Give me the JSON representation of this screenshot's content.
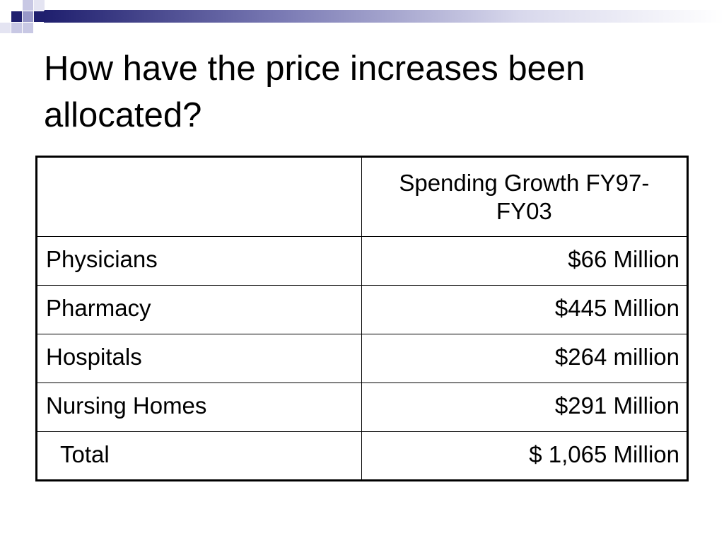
{
  "slide": {
    "title": "How have the price increases been allocated?"
  },
  "table": {
    "header": {
      "label": "",
      "value": "Spending Growth FY97-FY03"
    },
    "rows": [
      {
        "label": "Physicians",
        "value": "$66 Million"
      },
      {
        "label": "Pharmacy",
        "value": "$445 Million"
      },
      {
        "label": "Hospitals",
        "value": "$264 million"
      },
      {
        "label": "Nursing Homes",
        "value": "$291 Million"
      },
      {
        "label": "Total",
        "value": "$ 1,065 Million"
      }
    ]
  },
  "theme": {
    "band_dark": "#1f1f6e",
    "band_light": "#c8c8e4",
    "text": "#000000",
    "border": "#000000"
  }
}
